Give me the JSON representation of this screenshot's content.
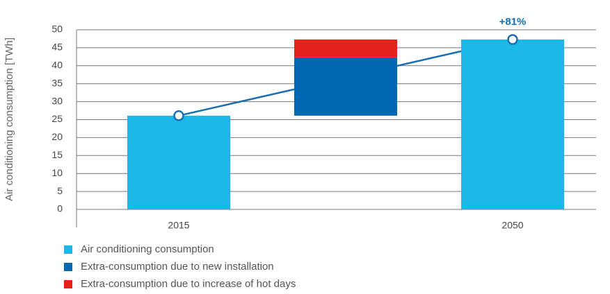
{
  "chart_data": {
    "type": "waterfall",
    "y_label": "Air conditioning consumption [TWh]",
    "categories": [
      "2015",
      null,
      "2050"
    ],
    "series": [
      {
        "name": "Air conditioning consumption",
        "color": "#1ab8e6",
        "values": [
          26.1,
          null,
          47.3
        ]
      },
      {
        "name": "Extra-consumption due to new installation",
        "color": "#0067b1",
        "values": [
          null,
          16.2,
          null
        ]
      },
      {
        "name": "Extra-consumption due to increase of hot days",
        "color": "#e3231b",
        "values": [
          null,
          5.0,
          null
        ]
      }
    ],
    "line_color": "#1a6fb3",
    "annotation": "+81%",
    "ylim": [
      0,
      50
    ],
    "yticks": [
      0,
      5,
      10,
      15,
      20,
      25,
      30,
      35,
      40,
      45,
      50
    ],
    "grid": true
  }
}
